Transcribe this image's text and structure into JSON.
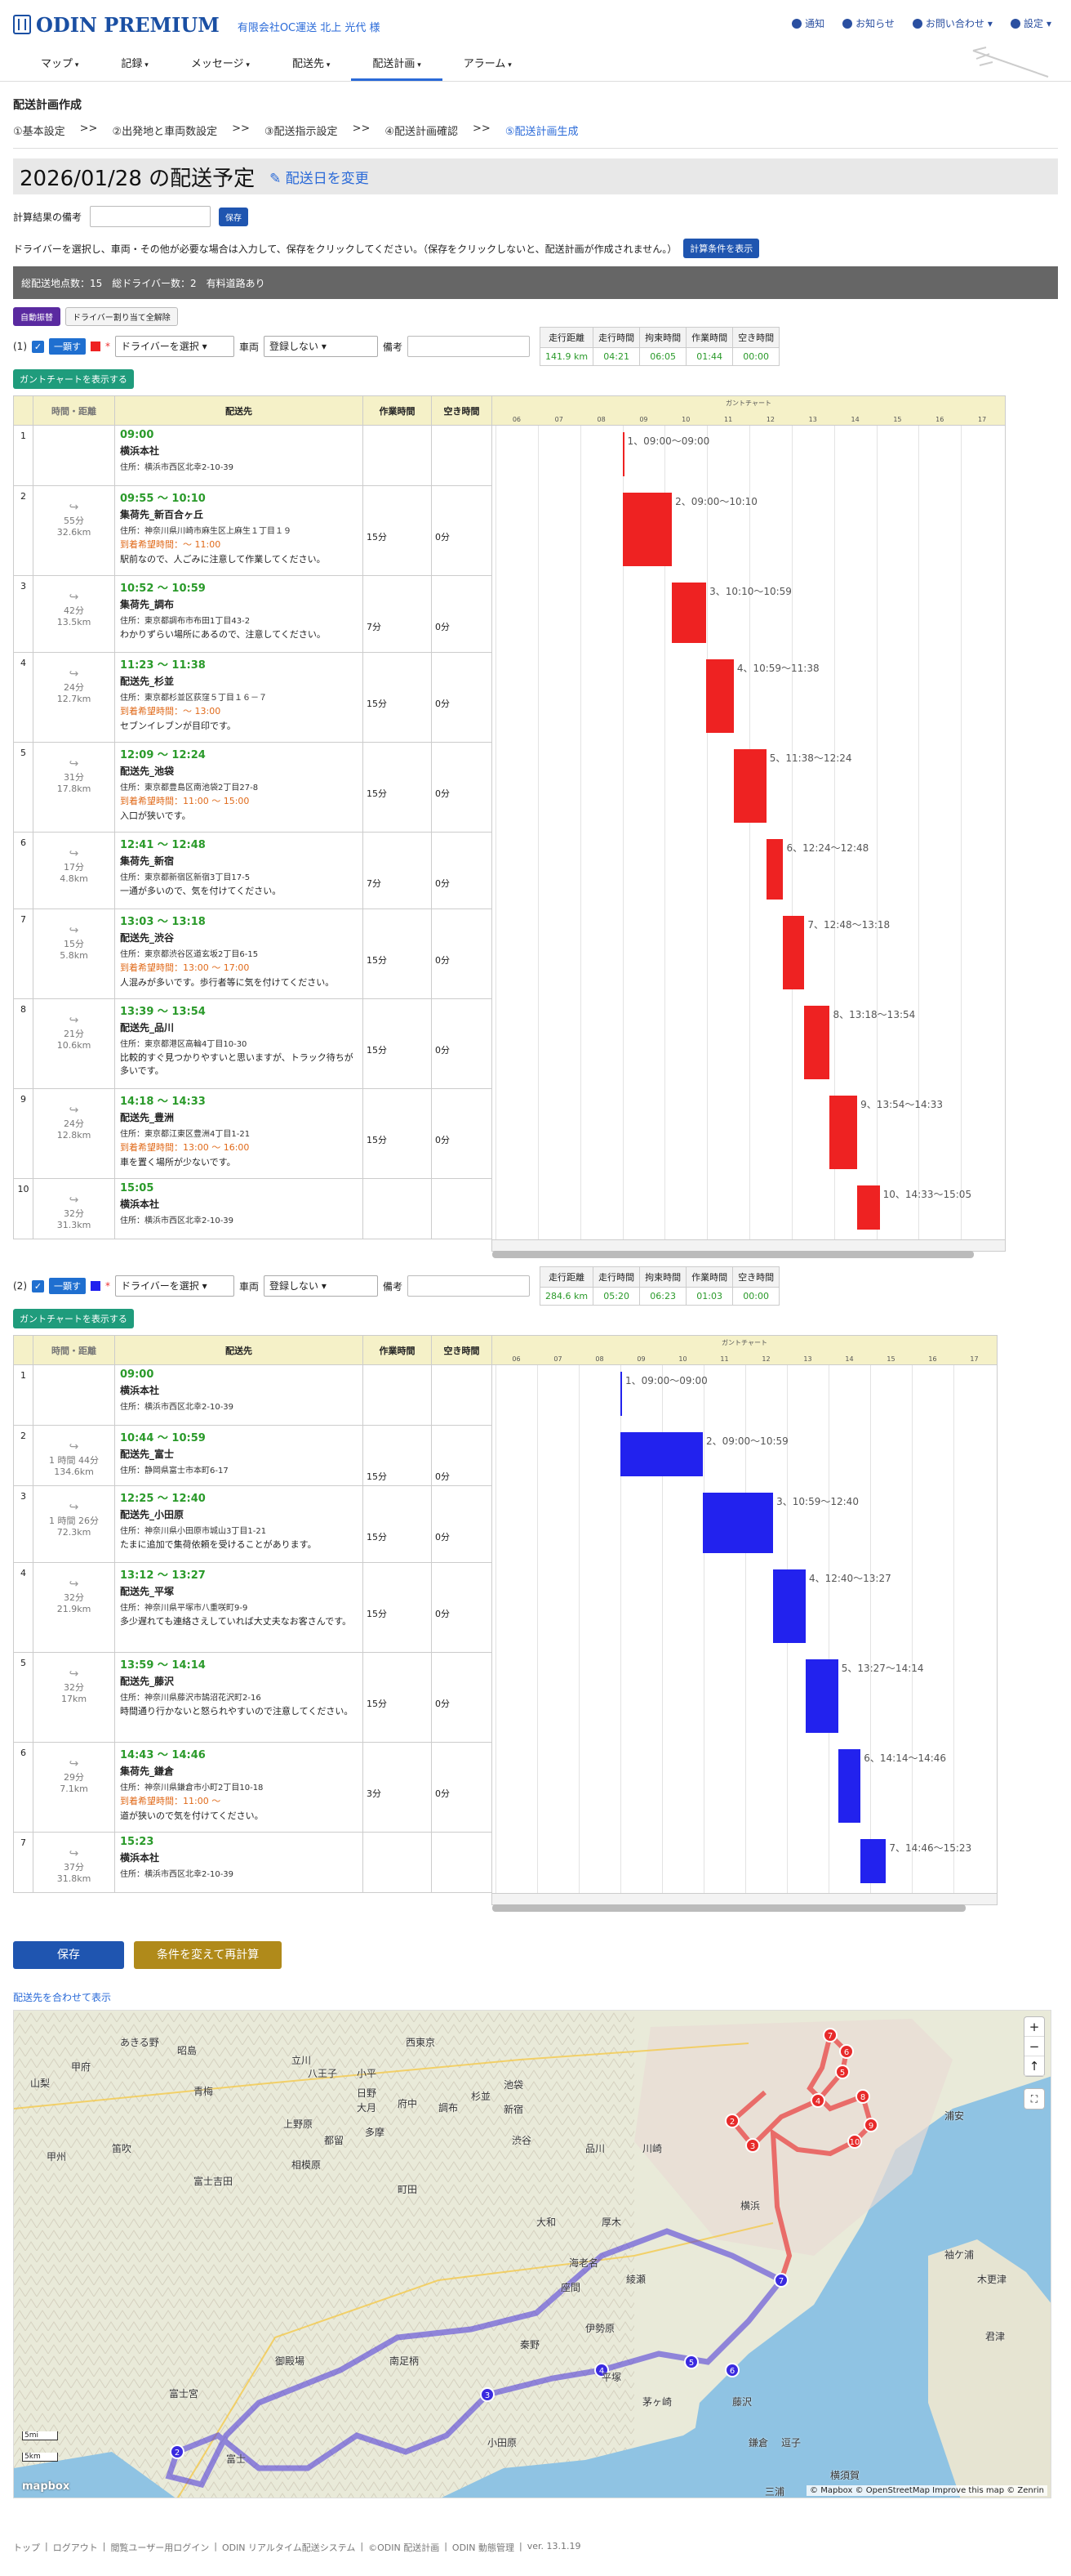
{
  "header": {
    "logo": "ODIN PREMIUM",
    "company": "有限会社OC運送 北上 光代 様",
    "links": [
      "通知",
      "お知らせ",
      "お問い合わせ",
      "設定"
    ]
  },
  "menu": [
    "マップ",
    "記録",
    "メッセージ",
    "配送先",
    "配送計画",
    "アラーム"
  ],
  "page": {
    "title": "配送計画作成",
    "steps": [
      "①基本設定",
      ">>",
      "②出発地と車両数設定",
      ">>",
      "③配送指示設定",
      ">>",
      "④配送計画確認",
      ">>",
      "⑤配送計画生成"
    ],
    "date": "2026/01/28 の配送予定",
    "change_date": "配送日を変更",
    "memo_label": "計算結果の備考",
    "save_small": "保存",
    "notice": "ドライバーを選択し、車両・その他が必要な場合は入力して、保存をクリックしてください。（保存をクリックしないと、配送計画が作成されません。）",
    "show_conditions": "計算条件を表示",
    "summary": "総配送地点数：15　総ドライバー数：2　有料道路あり",
    "mode_auto": "自動振替",
    "mode_clear": "ドライバー割り当て全解除",
    "col_time": "時間・距離",
    "col_dest": "配送先",
    "col_work": "作業時間",
    "col_idle": "空き時間",
    "gantt_title": "ガントチャート",
    "hours": [
      "06",
      "07",
      "08",
      "09",
      "10",
      "11",
      "12",
      "13",
      "14",
      "15",
      "16",
      "17"
    ],
    "driver_placeholder": "ドライバーを選択",
    "vehicle_label": "車両",
    "vehicle_value": "登録しない",
    "remarks_label": "備考",
    "hide": "一顕す",
    "gantt_btn": "ガントチャートを表示する",
    "stat_headers": [
      "走行距離",
      "走行時間",
      "拘束時間",
      "作業時間",
      "空き時間"
    ],
    "save": "保存",
    "recalc": "条件を変えて再計算",
    "map_link": "配送先を合わせて表示"
  },
  "vehicles": [
    {
      "label": "(1)",
      "color": "#ee2222",
      "stats": [
        "141.9 km",
        "04:21",
        "06:05",
        "01:44",
        "00:00"
      ],
      "rows": [
        {
          "idx": "1",
          "leg": "",
          "dist": "",
          "time": "09:00",
          "name": "横浜本社",
          "addr": "住所：横浜市西区北幸2-10-39",
          "hope": "",
          "memo": "",
          "work": "",
          "idle": "",
          "gs": 9.0,
          "ge": 9.0,
          "glabel": "1、09:00〜09:00"
        },
        {
          "idx": "2",
          "leg": "55分",
          "dist": "32.6km",
          "time": "09:55 ～ 10:10",
          "name": "集荷先_新百合ヶ丘",
          "addr": "住所：神奈川県川崎市麻生区上麻生１丁目１９",
          "hope": "到着希望時間：～ 11:00",
          "memo": "駅前なので、人ごみに注意して作業してください。",
          "work": "15分",
          "idle": "0分",
          "gs": 9.0,
          "ge": 10.17,
          "glabel": "2、09:00〜10:10"
        },
        {
          "idx": "3",
          "leg": "42分",
          "dist": "13.5km",
          "time": "10:52 ～ 10:59",
          "name": "集荷先_調布",
          "addr": "住所：東京都調布市布田1丁目43-2",
          "hope": "",
          "memo": "わかりずらい場所にあるので、注意してください。",
          "work": "7分",
          "idle": "0分",
          "gs": 10.17,
          "ge": 10.98,
          "glabel": "3、10:10〜10:59"
        },
        {
          "idx": "4",
          "leg": "24分",
          "dist": "12.7km",
          "time": "11:23 ～ 11:38",
          "name": "配送先_杉並",
          "addr": "住所：東京都杉並区荻窪５丁目１６－７",
          "hope": "到着希望時間：～ 13:00",
          "memo": "セブンイレブンが目印です。",
          "work": "15分",
          "idle": "0分",
          "gs": 10.98,
          "ge": 11.63,
          "glabel": "4、10:59〜11:38"
        },
        {
          "idx": "5",
          "leg": "31分",
          "dist": "17.8km",
          "time": "12:09 ～ 12:24",
          "name": "配送先_池袋",
          "addr": "住所：東京都豊島区南池袋2丁目27-8",
          "hope": "到着希望時間：11:00 ～ 15:00",
          "memo": "入口が狭いです。",
          "work": "15分",
          "idle": "0分",
          "gs": 11.63,
          "ge": 12.4,
          "glabel": "5、11:38〜12:24"
        },
        {
          "idx": "6",
          "leg": "17分",
          "dist": "4.8km",
          "time": "12:41 ～ 12:48",
          "name": "集荷先_新宿",
          "addr": "住所：東京都新宿区新宿3丁目17-5",
          "hope": "",
          "memo": "一通が多いので、気を付けてください。",
          "work": "7分",
          "idle": "0分",
          "gs": 12.4,
          "ge": 12.8,
          "glabel": "6、12:24〜12:48"
        },
        {
          "idx": "7",
          "leg": "15分",
          "dist": "5.8km",
          "time": "13:03 ～ 13:18",
          "name": "配送先_渋谷",
          "addr": "住所：東京都渋谷区道玄坂2丁目6-15",
          "hope": "到着希望時間：13:00 ～ 17:00",
          "memo": "人混みが多いです。歩行者等に気を付けてください。",
          "work": "15分",
          "idle": "0分",
          "gs": 12.8,
          "ge": 13.3,
          "glabel": "7、12:48〜13:18"
        },
        {
          "idx": "8",
          "leg": "21分",
          "dist": "10.6km",
          "time": "13:39 ～ 13:54",
          "name": "配送先_品川",
          "addr": "住所：東京都港区高輪4丁目10-30",
          "hope": "",
          "memo": "比較的すぐ見つかりやすいと思いますが、トラック待ちが多いです。",
          "work": "15分",
          "idle": "0分",
          "gs": 13.3,
          "ge": 13.9,
          "glabel": "8、13:18〜13:54"
        },
        {
          "idx": "9",
          "leg": "24分",
          "dist": "12.8km",
          "time": "14:18 ～ 14:33",
          "name": "配送先_豊洲",
          "addr": "住所：東京都江東区豊洲4丁目1-21",
          "hope": "到着希望時間：13:00 ～ 16:00",
          "memo": "車を置く場所が少ないです。",
          "work": "15分",
          "idle": "0分",
          "gs": 13.9,
          "ge": 14.55,
          "glabel": "9、13:54〜14:33"
        },
        {
          "idx": "10",
          "leg": "32分",
          "dist": "31.3km",
          "time": "15:05",
          "name": "横浜本社",
          "addr": "住所：横浜市西区北幸2-10-39",
          "hope": "",
          "memo": "",
          "work": "",
          "idle": "",
          "gs": 14.55,
          "ge": 15.08,
          "glabel": "10、14:33〜15:05"
        }
      ]
    },
    {
      "label": "(2)",
      "color": "#2222ee",
      "stats": [
        "284.6 km",
        "05:20",
        "06:23",
        "01:03",
        "00:00"
      ],
      "rows": [
        {
          "idx": "1",
          "leg": "",
          "dist": "",
          "time": "09:00",
          "name": "横浜本社",
          "addr": "住所：横浜市西区北幸2-10-39",
          "hope": "",
          "memo": "",
          "work": "",
          "idle": "",
          "gs": 9.0,
          "ge": 9.0,
          "glabel": "1、09:00〜09:00"
        },
        {
          "idx": "2",
          "leg": "1 時間 44分",
          "dist": "134.6km",
          "time": "10:44 ～ 10:59",
          "name": "配送先_富士",
          "addr": "住所：静岡県富士市本町6-17",
          "hope": "",
          "memo": "",
          "work": "15分",
          "idle": "0分",
          "gs": 9.0,
          "ge": 10.98,
          "glabel": "2、09:00〜10:59"
        },
        {
          "idx": "3",
          "leg": "1 時間 26分",
          "dist": "72.3km",
          "time": "12:25 ～ 12:40",
          "name": "配送先_小田原",
          "addr": "住所：神奈川県小田原市城山3丁目1-21",
          "hope": "",
          "memo": "たまに追加で集荷依頼を受けることがあります。",
          "work": "15分",
          "idle": "0分",
          "gs": 10.98,
          "ge": 12.67,
          "glabel": "3、10:59〜12:40"
        },
        {
          "idx": "4",
          "leg": "32分",
          "dist": "21.9km",
          "time": "13:12 ～ 13:27",
          "name": "配送先_平塚",
          "addr": "住所：神奈川県平塚市八重咲町9-9",
          "hope": "",
          "memo": "多少遅れても連絡さえしていれば大丈夫なお客さんです。",
          "work": "15分",
          "idle": "0分",
          "gs": 12.67,
          "ge": 13.45,
          "glabel": "4、12:40〜13:27"
        },
        {
          "idx": "5",
          "leg": "32分",
          "dist": "17km",
          "time": "13:59 ～ 14:14",
          "name": "配送先_藤沢",
          "addr": "住所：神奈川県藤沢市鵠沼花沢町2-16",
          "hope": "",
          "memo": "時間通り行かないと怒られやすいので注意してください。",
          "work": "15分",
          "idle": "0分",
          "gs": 13.45,
          "ge": 14.23,
          "glabel": "5、13:27〜14:14"
        },
        {
          "idx": "6",
          "leg": "29分",
          "dist": "7.1km",
          "time": "14:43 ～ 14:46",
          "name": "集荷先_鎌倉",
          "addr": "住所：神奈川県鎌倉市小町2丁目10-18",
          "hope": "到着希望時間：11:00 ～",
          "memo": "道が狭いので気を付けてください。",
          "work": "3分",
          "idle": "0分",
          "gs": 14.23,
          "ge": 14.77,
          "glabel": "6、14:14〜14:46"
        },
        {
          "idx": "7",
          "leg": "37分",
          "dist": "31.8km",
          "time": "15:23",
          "name": "横浜本社",
          "addr": "住所：横浜市西区北幸2-10-39",
          "hope": "",
          "memo": "",
          "work": "",
          "idle": "",
          "gs": 14.77,
          "ge": 15.38,
          "glabel": "7、14:46〜15:23"
        }
      ]
    }
  ],
  "map": {
    "places": [
      "あきる野",
      "昭島",
      "立川",
      "小平",
      "西東京",
      "青梅",
      "八王子",
      "日野",
      "府中",
      "調布",
      "杉並",
      "池袋",
      "新宿",
      "渋谷",
      "品川",
      "多摩",
      "町田",
      "相模原",
      "川崎",
      "横浜",
      "大和",
      "厚木",
      "海老名",
      "秦野",
      "伊勢原",
      "平塚",
      "茅ヶ崎",
      "藤沢",
      "鎌倉",
      "逗子",
      "横須賀",
      "大月",
      "都留",
      "富士吉田",
      "御殿場",
      "南足柄",
      "小田原",
      "富士",
      "富士宮",
      "甲府",
      "山梨",
      "笛吹",
      "甲州",
      "浦安",
      "木更津",
      "袖ケ浦",
      "君津",
      "三浦",
      "上野原",
      "座間",
      "綾瀬"
    ],
    "attribution": "© Mapbox © OpenStreetMap Improve this map © Zenrin",
    "logo": "mapbox",
    "scale_a": "5mi",
    "scale_b": "5km"
  },
  "footer": [
    "トップ",
    "ログアウト",
    "閲覧ユーザー用ログイン",
    "ODIN リアルタイム配送システム",
    "©ODIN 配送計画",
    "ODIN 動態管理",
    "ver. 13.1.19"
  ]
}
